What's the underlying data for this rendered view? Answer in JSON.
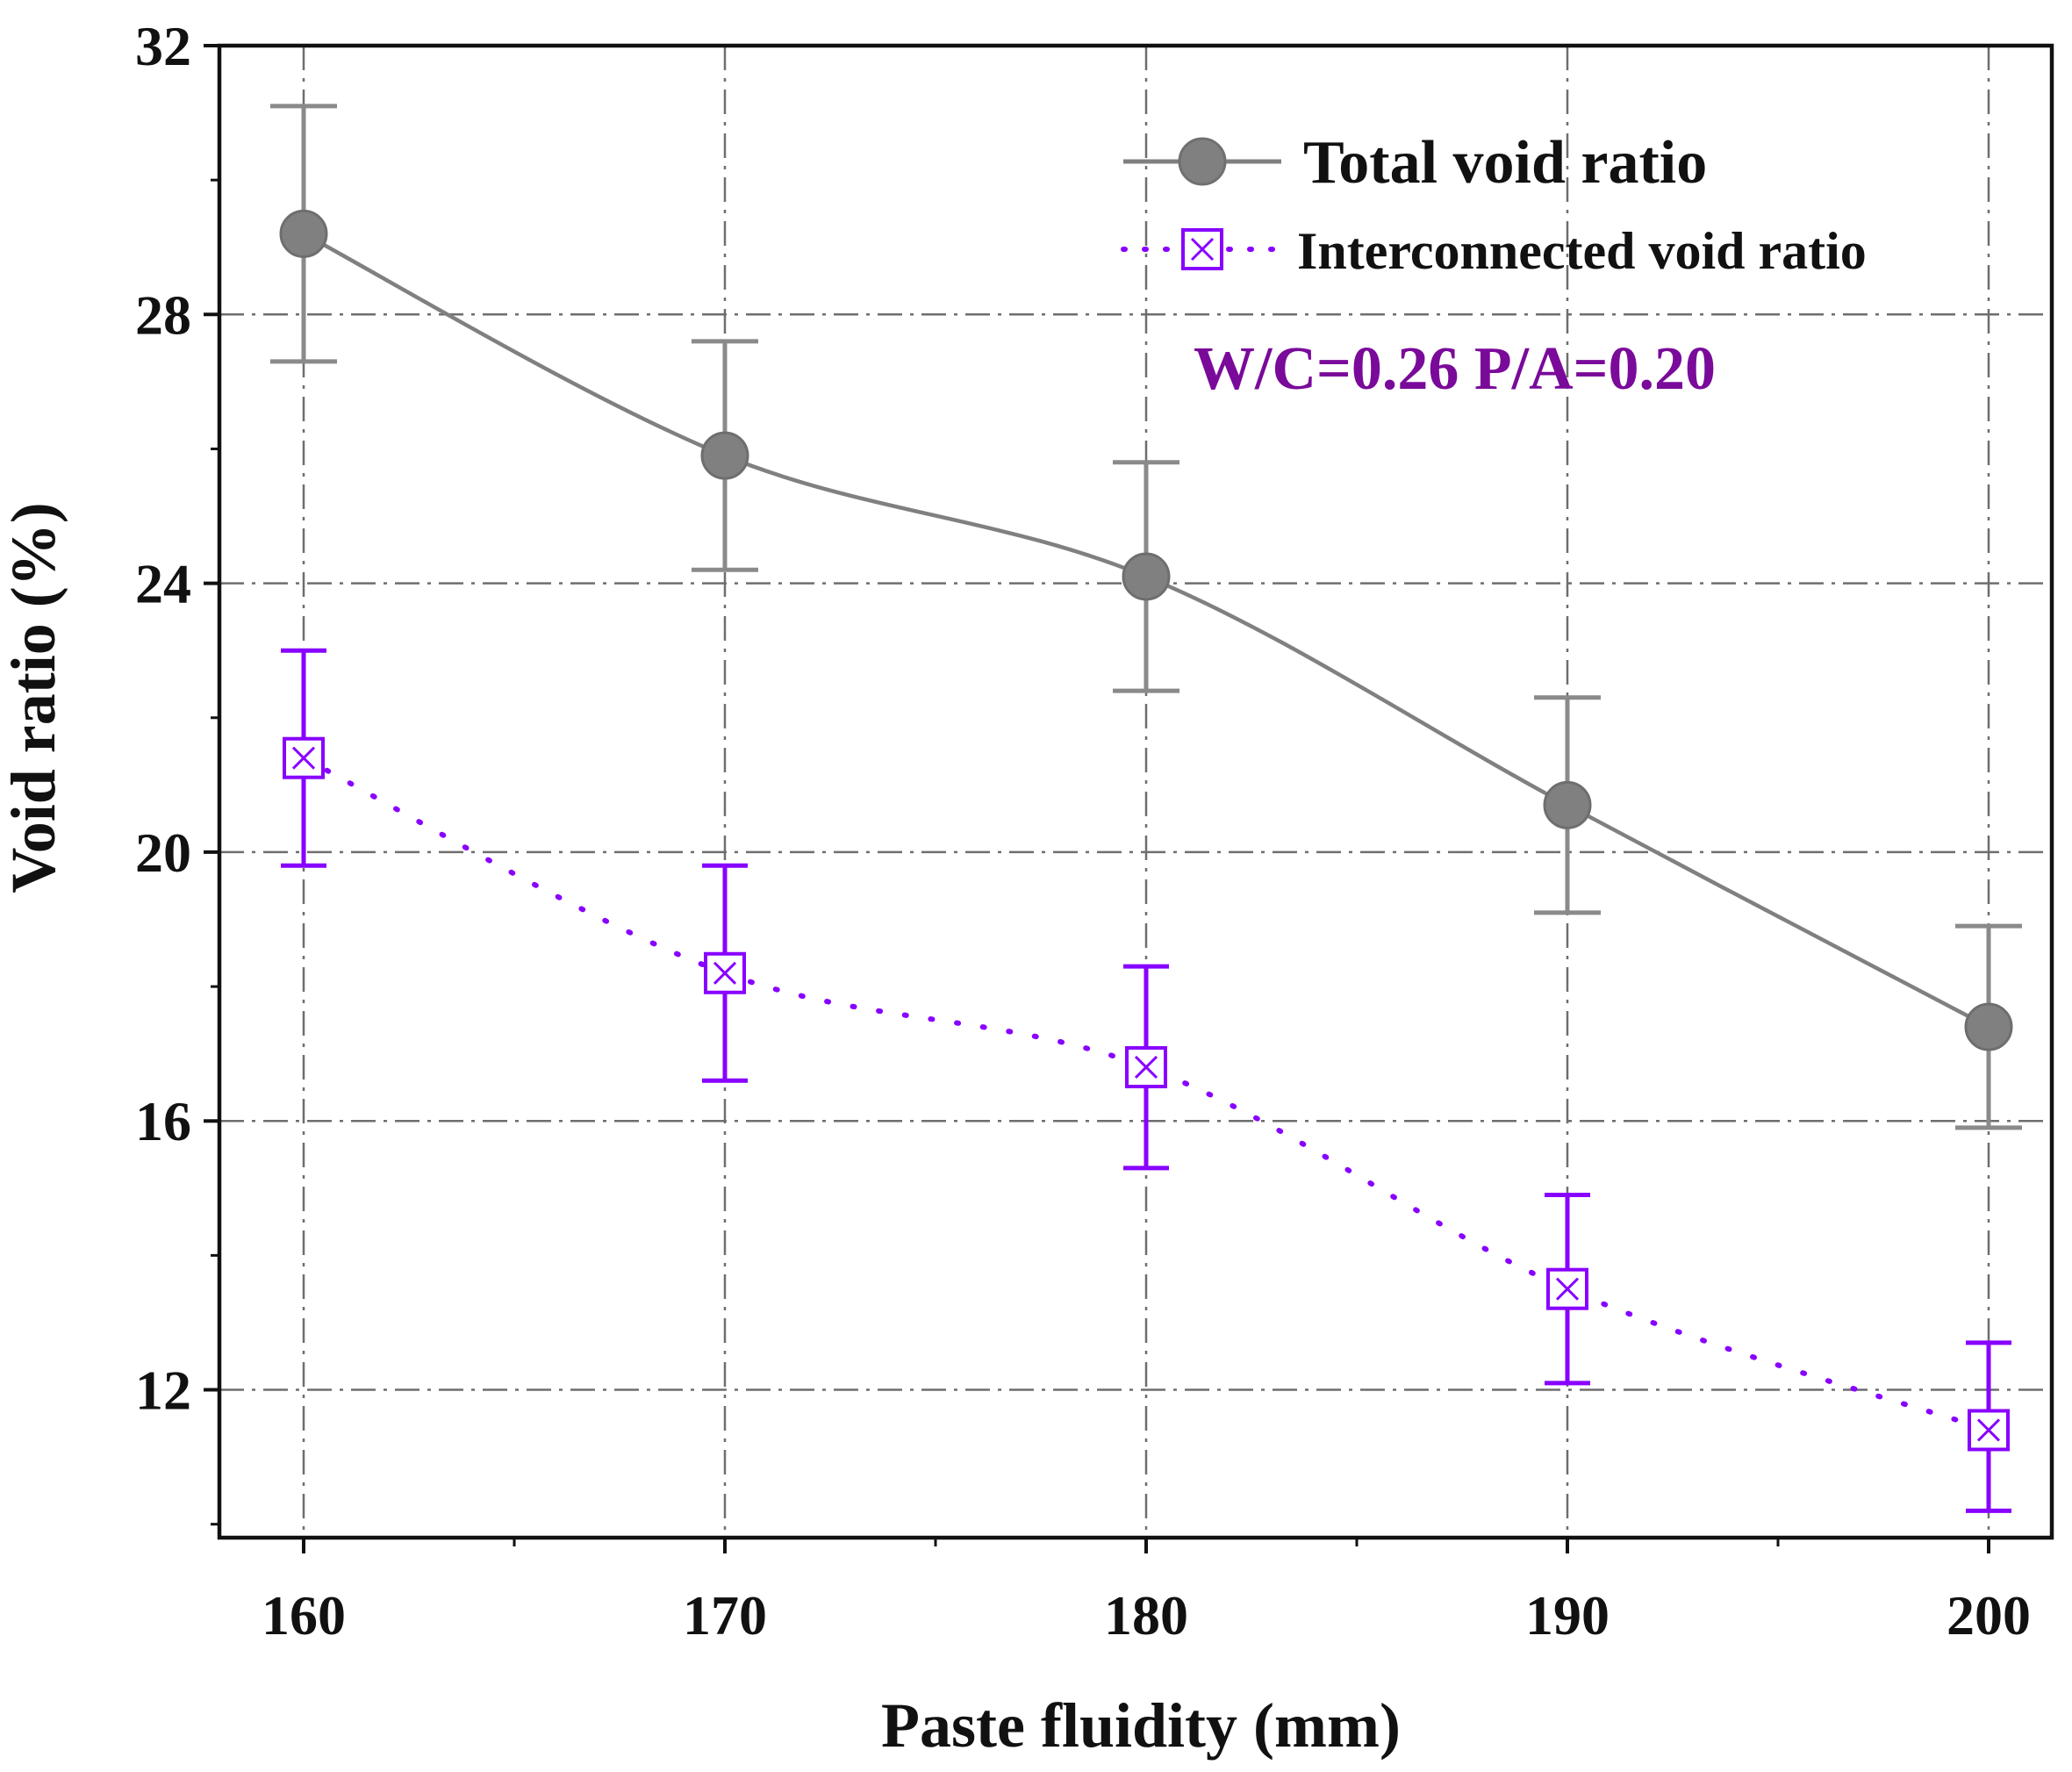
{
  "chart_data": {
    "type": "line",
    "title": "",
    "xlabel": "Paste fluidity (mm)",
    "ylabel": "Void ratio (%)",
    "x": [
      160,
      170,
      180,
      190,
      200
    ],
    "xlim": [
      158,
      201.5
    ],
    "ylim": [
      9.8,
      32
    ],
    "xticks": [
      160,
      170,
      180,
      190,
      200
    ],
    "yticks": [
      12,
      16,
      20,
      24,
      28,
      32
    ],
    "grid": true,
    "legend_position": "top-right",
    "series": [
      {
        "name": "Total void ratio",
        "values": [
          29.2,
          25.9,
          24.1,
          20.7,
          17.4
        ],
        "error_upper": [
          31.1,
          27.6,
          25.8,
          22.3,
          18.9
        ],
        "error_lower": [
          27.3,
          24.2,
          22.4,
          19.1,
          15.9
        ],
        "color": "#808080",
        "line_style": "solid",
        "marker": "filled-circle"
      },
      {
        "name": "Interconnected void ratio",
        "values": [
          21.4,
          18.2,
          16.8,
          13.5,
          11.4
        ],
        "error_upper": [
          23.0,
          19.8,
          18.3,
          14.9,
          12.7
        ],
        "error_lower": [
          19.8,
          16.6,
          15.3,
          12.1,
          10.2
        ],
        "color": "#8800ff",
        "line_style": "dotted",
        "marker": "crossed-square"
      }
    ],
    "annotation": {
      "text": "W/C=0.26  P/A=0.20",
      "color": "#7a0a9a"
    }
  }
}
